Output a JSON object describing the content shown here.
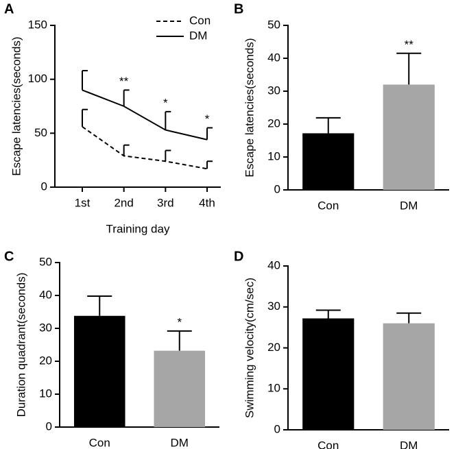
{
  "chart_data": [
    {
      "type": "line",
      "panel_label": "A",
      "ylabel": "Escape latencies(seconds)",
      "xlabel": "Training day",
      "categories": [
        "1st",
        "2nd",
        "3rd",
        "4th"
      ],
      "series": [
        {
          "name": "Con",
          "color": "#000000",
          "line_style": "dashed",
          "values": [
            56,
            29,
            24,
            17
          ],
          "errors": [
            16,
            10,
            10,
            7
          ]
        },
        {
          "name": "DM",
          "color": "#000000",
          "line_style": "solid",
          "values": [
            90,
            75,
            53,
            44
          ],
          "errors": [
            18,
            15,
            17,
            11
          ]
        }
      ],
      "annotations": [
        null,
        "**",
        "*",
        "*"
      ],
      "ylim": [
        0,
        150
      ],
      "yticks": [
        0,
        50,
        100,
        150
      ],
      "legend": "upper right"
    },
    {
      "type": "bar",
      "panel_label": "B",
      "ylabel": "Escape latencies(seconds)",
      "categories": [
        "Con",
        "DM"
      ],
      "values": [
        17.2,
        32
      ],
      "errors": [
        4.7,
        9.5
      ],
      "colors": [
        "#000000",
        "#a6a6a6"
      ],
      "annotations": [
        null,
        "**"
      ],
      "ylim": [
        0,
        50
      ],
      "yticks": [
        0,
        10,
        20,
        30,
        40,
        50
      ]
    },
    {
      "type": "bar",
      "panel_label": "C",
      "ylabel": "Duration quadrant(seconds)",
      "categories": [
        "Con",
        "DM"
      ],
      "values": [
        33.8,
        23.2
      ],
      "errors": [
        6,
        6
      ],
      "colors": [
        "#000000",
        "#a6a6a6"
      ],
      "annotations": [
        null,
        "*"
      ],
      "ylim": [
        0,
        50
      ],
      "yticks": [
        0,
        10,
        20,
        30,
        40,
        50
      ]
    },
    {
      "type": "bar",
      "panel_label": "D",
      "ylabel": "Swimming velocity(cm/sec)",
      "categories": [
        "Con",
        "DM"
      ],
      "values": [
        27.2,
        26
      ],
      "errors": [
        2,
        2.5
      ],
      "colors": [
        "#000000",
        "#a6a6a6"
      ],
      "ylim": [
        0,
        40
      ],
      "yticks": [
        0,
        10,
        20,
        30,
        40
      ]
    }
  ]
}
